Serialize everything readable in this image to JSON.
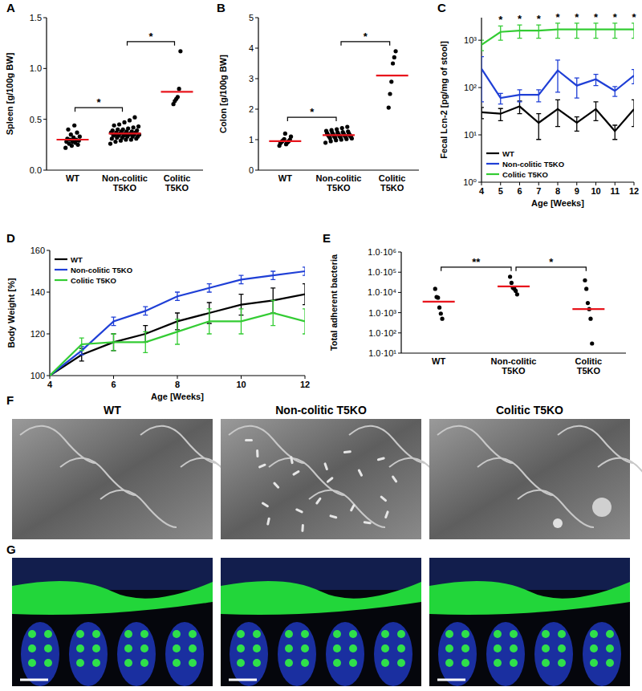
{
  "chart_data": [
    {
      "type": "strip",
      "panel_label": "A",
      "y_label": "Spleen [g/100g BW]",
      "categories": [
        "WT",
        "Non-colitic T5KO",
        "Colitic T5KO"
      ],
      "points": [
        [
          0.22,
          0.24,
          0.25,
          0.26,
          0.27,
          0.28,
          0.28,
          0.29,
          0.3,
          0.3,
          0.31,
          0.32,
          0.33,
          0.35,
          0.37,
          0.4,
          0.44
        ],
        [
          0.26,
          0.28,
          0.29,
          0.3,
          0.3,
          0.31,
          0.31,
          0.32,
          0.32,
          0.33,
          0.33,
          0.33,
          0.34,
          0.34,
          0.34,
          0.35,
          0.35,
          0.35,
          0.35,
          0.36,
          0.36,
          0.36,
          0.37,
          0.37,
          0.37,
          0.38,
          0.38,
          0.38,
          0.39,
          0.39,
          0.4,
          0.4,
          0.41,
          0.42,
          0.43,
          0.44,
          0.45,
          0.47,
          0.49,
          0.52
        ],
        [
          0.65,
          0.68,
          0.7,
          0.72,
          0.8,
          1.17
        ]
      ],
      "means": [
        0.3,
        0.36,
        0.77
      ],
      "color": "#000000",
      "ylim": [
        0,
        1.5
      ],
      "yticks": [
        {
          "value": 0,
          "label": "0.0"
        },
        {
          "value": 0.5,
          "label": "0.5"
        },
        {
          "value": 1,
          "label": "1.0"
        },
        {
          "value": 1.5,
          "label": "1.5"
        }
      ],
      "annotations": [
        {
          "text": "*",
          "between": [
            0,
            1
          ]
        },
        {
          "text": "*",
          "between": [
            1,
            2
          ]
        }
      ]
    },
    {
      "type": "strip",
      "panel_label": "B",
      "y_label": "Colon [g/100g BW]",
      "categories": [
        "WT",
        "Non-colitic T5KO",
        "Colitic T5KO"
      ],
      "points": [
        [
          0.8,
          0.85,
          0.88,
          0.9,
          0.92,
          0.93,
          0.95,
          0.96,
          0.98,
          1.0,
          1.02,
          1.1,
          1.2
        ],
        [
          0.9,
          0.95,
          0.98,
          1.0,
          1.02,
          1.04,
          1.05,
          1.06,
          1.07,
          1.08,
          1.09,
          1.1,
          1.1,
          1.11,
          1.12,
          1.12,
          1.13,
          1.14,
          1.15,
          1.15,
          1.16,
          1.17,
          1.18,
          1.19,
          1.2,
          1.21,
          1.22,
          1.23,
          1.24,
          1.25,
          1.27,
          1.29,
          1.31,
          1.34,
          1.38,
          1.42
        ],
        [
          2.05,
          2.5,
          2.9,
          3.5,
          3.7,
          3.9
        ]
      ],
      "means": [
        0.95,
        1.15,
        3.1
      ],
      "color": "#000000",
      "ylim": [
        0,
        5
      ],
      "yticks": [
        0,
        1,
        2,
        3,
        4,
        5
      ],
      "annotations": [
        {
          "text": "*",
          "between": [
            0,
            1
          ]
        },
        {
          "text": "*",
          "between": [
            1,
            2
          ]
        }
      ]
    },
    {
      "type": "line",
      "panel_label": "C",
      "y_label": "Fecal Lcn-2 [pg/mg of stool]",
      "x_label": "Age [Weeks]",
      "x": [
        4,
        5,
        6,
        7,
        8,
        9,
        10,
        11,
        12
      ],
      "xlim": [
        4,
        12
      ],
      "xticks": [
        4,
        5,
        6,
        7,
        8,
        9,
        10,
        11,
        12
      ],
      "log": "y",
      "ylim": [
        1,
        3000
      ],
      "yticks": [
        {
          "value": 1,
          "label": "10⁰"
        },
        {
          "value": 10,
          "label": "10¹"
        },
        {
          "value": 100,
          "label": "10²"
        },
        {
          "value": 1000,
          "label": "10³"
        }
      ],
      "legend": "lower left",
      "series": [
        {
          "name": "WT",
          "color": "#000000",
          "values": [
            30,
            28,
            40,
            18,
            35,
            18,
            35,
            12,
            35
          ],
          "errors": [
            8,
            8,
            12,
            10,
            20,
            6,
            15,
            4,
            20
          ]
        },
        {
          "name": "Non-colitic T5KO",
          "color": "#1f3fd6",
          "values": [
            250,
            60,
            70,
            70,
            230,
            110,
            150,
            85,
            180
          ],
          "errors": [
            200,
            15,
            20,
            20,
            150,
            50,
            40,
            20,
            60
          ]
        },
        {
          "name": "Colitic T5KO",
          "color": "#33cc33",
          "values": [
            800,
            1500,
            1600,
            1600,
            1700,
            1700,
            1700,
            1700,
            1700
          ],
          "errors": [
            200,
            500,
            500,
            500,
            600,
            600,
            600,
            600,
            600
          ]
        }
      ],
      "annotations": [
        {
          "text": "*",
          "x": 5
        },
        {
          "text": "*",
          "x": 6
        },
        {
          "text": "*",
          "x": 7
        },
        {
          "text": "*",
          "x": 8
        },
        {
          "text": "*",
          "x": 9
        },
        {
          "text": "*",
          "x": 10
        },
        {
          "text": "*",
          "x": 11
        },
        {
          "text": "*",
          "x": 12
        }
      ]
    },
    {
      "type": "line",
      "panel_label": "D",
      "y_label": "Body Weight [%]",
      "x_label": "Age [Weeks]",
      "x": [
        4,
        5,
        6,
        7,
        8,
        9,
        10,
        11,
        12
      ],
      "xlim": [
        4,
        12
      ],
      "xticks": [
        4,
        6,
        8,
        10,
        12
      ],
      "ylim": [
        100,
        160
      ],
      "yticks": [
        100,
        120,
        140,
        160
      ],
      "legend": "upper left",
      "series": [
        {
          "name": "WT",
          "color": "#000000",
          "values": [
            100,
            110,
            116,
            120,
            126,
            130,
            134,
            136,
            139
          ],
          "errors": [
            0,
            3,
            4,
            4,
            4,
            5,
            5,
            6,
            5
          ]
        },
        {
          "name": "Non-colitic T5KO",
          "color": "#1f3fd6",
          "values": [
            100,
            112,
            126,
            131,
            138,
            142,
            146,
            148,
            150
          ],
          "errors": [
            0,
            2,
            2,
            2,
            2,
            2,
            2,
            2,
            2
          ]
        },
        {
          "name": "Colitic T5KO",
          "color": "#33cc33",
          "values": [
            100,
            115,
            116,
            116,
            121,
            126,
            126,
            130,
            126
          ],
          "errors": [
            0,
            3,
            4,
            5,
            6,
            6,
            6,
            6,
            6
          ]
        }
      ]
    },
    {
      "type": "strip",
      "panel_label": "E",
      "y_label": "Total adherent bacteria",
      "categories": [
        "WT",
        "Non-colitic T5KO",
        "Colitic T5KO"
      ],
      "points": [
        [
          15000,
          6000,
          5500,
          1800,
          900,
          500
        ],
        [
          60000,
          30000,
          17000,
          15000,
          12000,
          8000
        ],
        [
          40000,
          15000,
          3000,
          1500,
          500,
          30
        ]
      ],
      "means": [
        3500,
        20000,
        1500
      ],
      "color": "#000000",
      "log": "y",
      "ylim": [
        10,
        1000000
      ],
      "yticks": [
        {
          "value": 10,
          "label": "1.0·10¹"
        },
        {
          "value": 100,
          "label": "1.0·10²"
        },
        {
          "value": 1000,
          "label": "1.0·10³"
        },
        {
          "value": 10000,
          "label": "1.0·10⁴"
        },
        {
          "value": 100000,
          "label": "1.0·10⁵"
        },
        {
          "value": 1000000,
          "label": "1.0·10⁶"
        }
      ],
      "annotations": [
        {
          "text": "**",
          "between": [
            0,
            1
          ]
        },
        {
          "text": "*",
          "between": [
            1,
            2
          ]
        }
      ]
    }
  ],
  "images": [
    {
      "panel_label": "F",
      "titles": [
        "WT",
        "Non-colitic T5KO",
        "Colitic T5KO"
      ]
    },
    {
      "panel_label": "G"
    }
  ]
}
